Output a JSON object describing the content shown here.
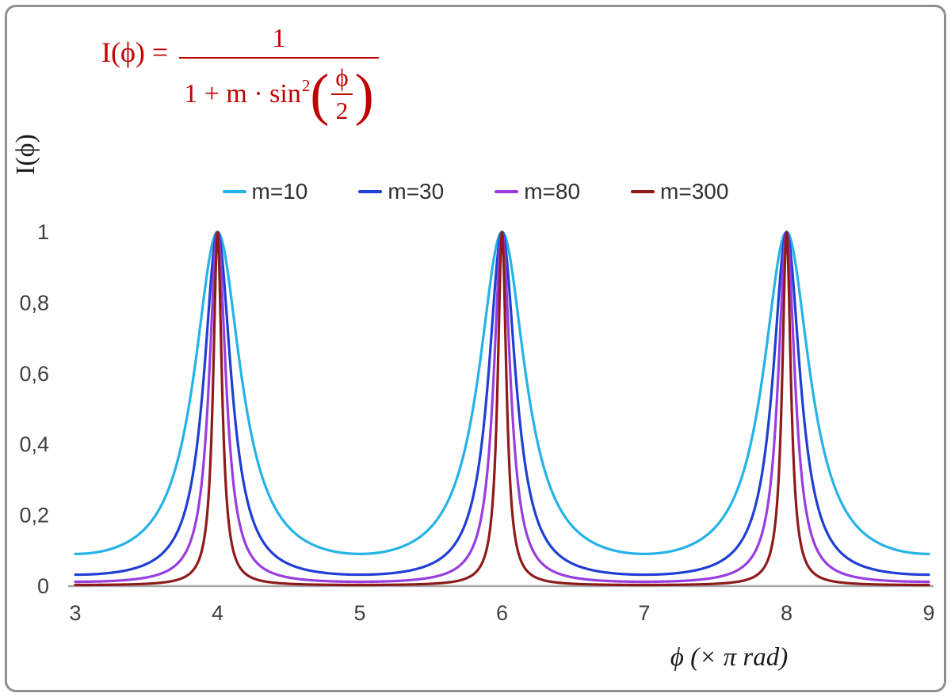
{
  "formula": {
    "color": "#c00000",
    "lhs": "I(ϕ) =",
    "numerator": "1",
    "denominator_prefix": "1 + m · sin",
    "denominator_sup": "2",
    "inner_numerator": "ϕ",
    "inner_denominator": "2"
  },
  "chart_data": {
    "type": "line",
    "title": "",
    "function": "I(x) = 1 / (1 + m · sin²(π·x/2)), x in units of π rad",
    "xlabel": "ϕ  (× π rad)",
    "ylabel": "I(ϕ)",
    "xlim": [
      3,
      9
    ],
    "ylim": [
      0,
      1
    ],
    "x_ticks": [
      3,
      4,
      5,
      6,
      7,
      8,
      9
    ],
    "x_tick_labels": [
      "3",
      "4",
      "5",
      "6",
      "7",
      "8",
      "9"
    ],
    "y_ticks": [
      0,
      0.2,
      0.4,
      0.6,
      0.8,
      1
    ],
    "y_tick_labels": [
      "0",
      "0,2",
      "0,4",
      "0,6",
      "0,8",
      "1"
    ],
    "peaks_at_x": [
      4,
      6,
      8
    ],
    "peak_value": 1,
    "grid": false,
    "legend_position": "top",
    "axis_color": "#a6a6a6",
    "series": [
      {
        "name": "m=10",
        "m": 10,
        "color": "#25b2e8"
      },
      {
        "name": "m=30",
        "m": 30,
        "color": "#1f3fd4"
      },
      {
        "name": "m=80",
        "m": 80,
        "color": "#9a3de0"
      },
      {
        "name": "m=300",
        "m": 300,
        "color": "#8e1a1a"
      }
    ]
  }
}
